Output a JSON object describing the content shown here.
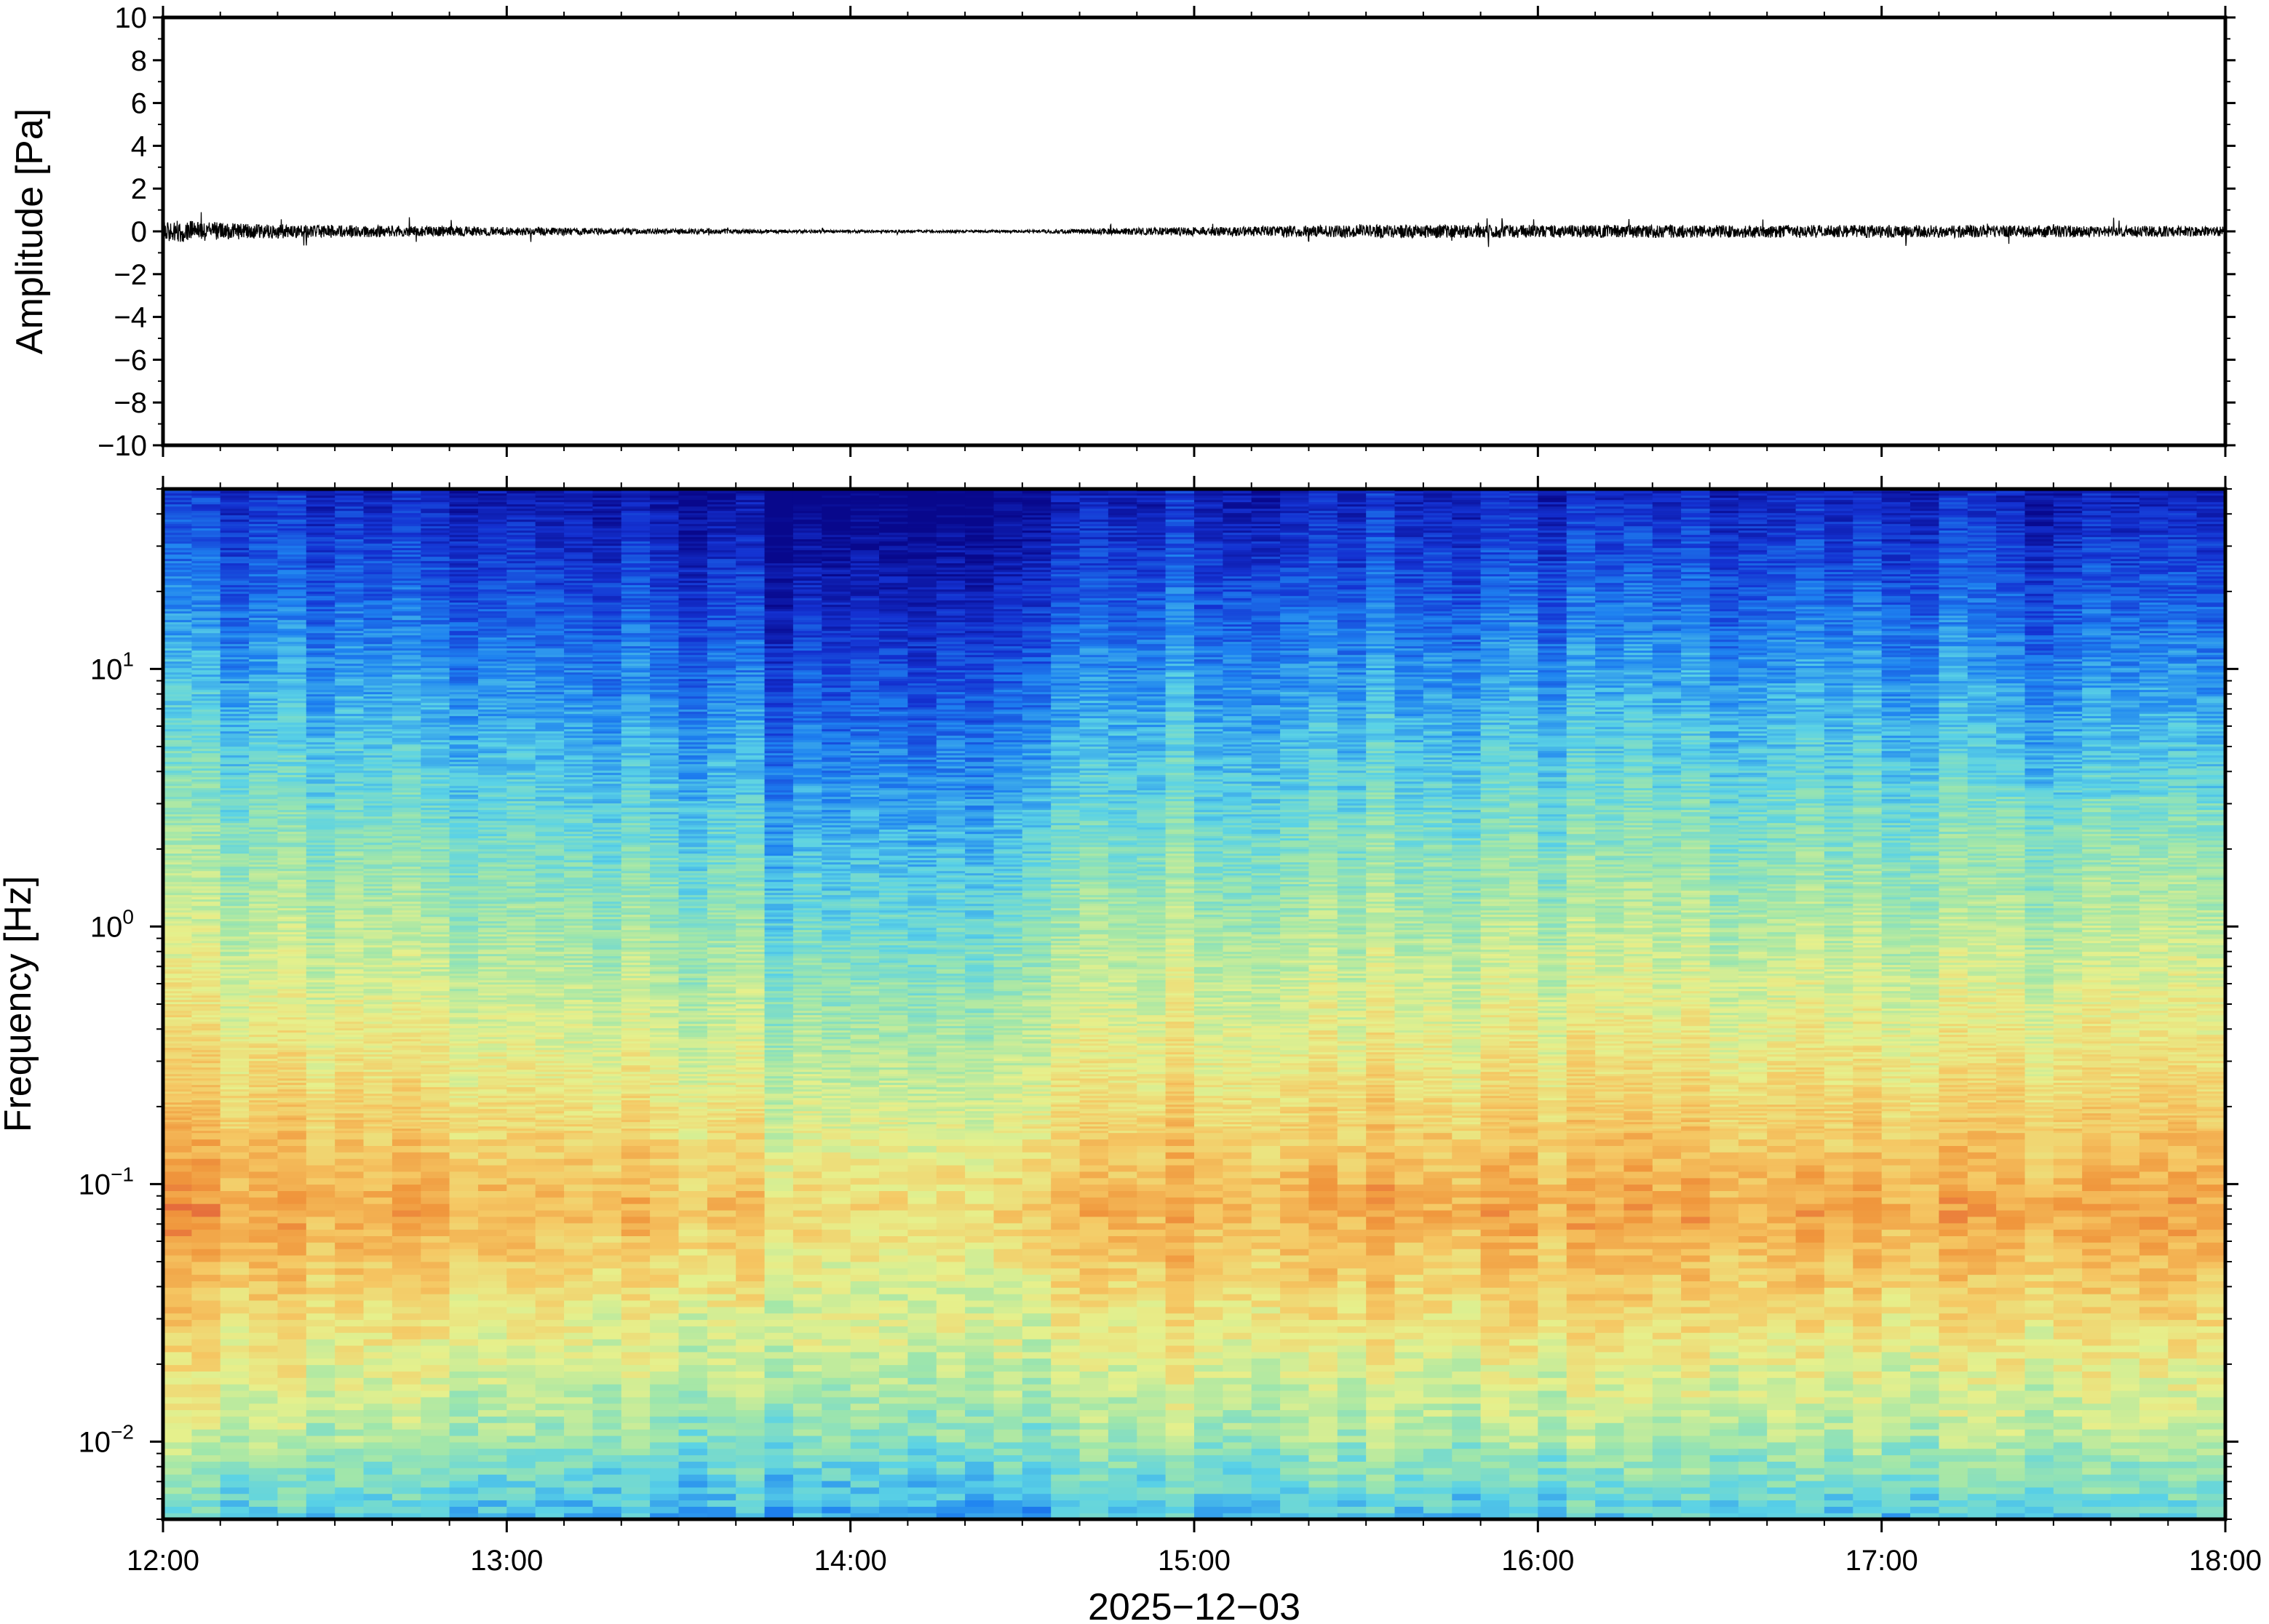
{
  "chart_data": [
    {
      "type": "line",
      "panel": "waveform",
      "ylabel": "Amplitude [Pa]",
      "ylim": [
        -10,
        10
      ],
      "yticks": [
        10,
        8,
        6,
        4,
        2,
        0,
        -2,
        -4,
        -6,
        -8,
        -10
      ],
      "ytick_labels": [
        "10",
        "8",
        "6",
        "4",
        "2",
        "0",
        "−2",
        "−4",
        "−6",
        "−8",
        "−10"
      ],
      "xlim": [
        "12:00",
        "18:00"
      ],
      "line_color": "#000000",
      "noise_envelope": {
        "times_hours": [
          12.0,
          12.25,
          12.5,
          13.0,
          13.5,
          14.0,
          14.5,
          14.75,
          15.0,
          15.5,
          16.0,
          16.5,
          17.0,
          17.5,
          18.0
        ],
        "amplitude_pa": [
          0.55,
          0.35,
          0.3,
          0.2,
          0.12,
          0.06,
          0.06,
          0.15,
          0.2,
          0.3,
          0.3,
          0.3,
          0.3,
          0.28,
          0.22
        ]
      }
    },
    {
      "type": "heatmap",
      "panel": "spectrogram",
      "ylabel": "Frequency [Hz]",
      "yscale": "log",
      "ylim": [
        0.005,
        50
      ],
      "yticks": [
        {
          "base": "10",
          "exp": "1",
          "value": 10
        },
        {
          "base": "10",
          "exp": "0",
          "value": 1
        },
        {
          "base": "10",
          "exp": "−1",
          "value": 0.1
        },
        {
          "base": "10",
          "exp": "−2",
          "value": 0.01
        }
      ],
      "xlabel": "2025−12−03",
      "xticks": [
        "12:00",
        "13:00",
        "14:00",
        "15:00",
        "16:00",
        "17:00",
        "18:00"
      ],
      "colormap": "jet",
      "colormap_stops": [
        "#08088c",
        "#1432d2",
        "#1e82f0",
        "#5ad2e6",
        "#a0e6aa",
        "#e6f08c",
        "#f5c864",
        "#f0963c",
        "#dc463c"
      ],
      "quiet_period": [
        "13:45",
        "14:32"
      ]
    }
  ]
}
